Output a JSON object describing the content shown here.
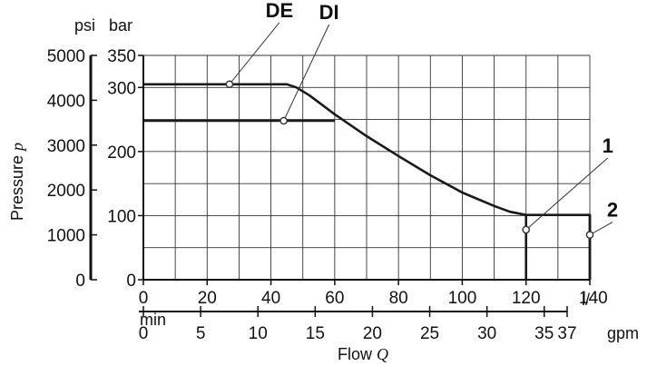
{
  "chart_data": {
    "type": "line",
    "title": "",
    "xlabel": "Flow",
    "xlabel_symbol": "Q",
    "ylabel": "Pressure",
    "ylabel_symbol": "p",
    "x_axes": {
      "primary": {
        "unit": "l/min",
        "unit_line1": "l/",
        "unit_line2": "min",
        "ticks": [
          0,
          20,
          40,
          60,
          80,
          100,
          120,
          140
        ],
        "range": [
          0,
          140
        ]
      },
      "secondary": {
        "unit": "gpm",
        "ticks": [
          0,
          5,
          10,
          15,
          20,
          25,
          30,
          35,
          37
        ],
        "range": [
          0,
          37
        ]
      }
    },
    "y_axes": {
      "bar": {
        "unit": "bar",
        "ticks": [
          0,
          100,
          200,
          300,
          350
        ],
        "range": [
          0,
          350
        ]
      },
      "psi": {
        "unit": "psi",
        "ticks": [
          0,
          1000,
          2000,
          3000,
          4000,
          5000
        ],
        "range": [
          0,
          5000
        ]
      }
    },
    "grid": true,
    "series": [
      {
        "label": "DE",
        "x": [
          0,
          45,
          48,
          52,
          56,
          60,
          70,
          80,
          90,
          100,
          110,
          115,
          120,
          140,
          140
        ],
        "y": [
          305,
          305,
          300,
          288,
          273,
          258,
          224,
          193,
          163,
          136,
          115,
          106,
          101,
          101,
          0
        ]
      },
      {
        "label": "DI",
        "x": [
          0,
          60
        ],
        "y": [
          248,
          248
        ]
      }
    ],
    "vertical_lines": [
      {
        "x": 120,
        "y_from": 0,
        "y_to": 101
      },
      {
        "x": 140,
        "y_from": 0,
        "y_to": 101
      }
    ],
    "annotations": [
      {
        "label": "DE",
        "x": 27,
        "y": 305
      },
      {
        "label": "DI",
        "x": 44,
        "y": 248
      },
      {
        "label": "1",
        "x": 120,
        "y": 78
      },
      {
        "label": "2",
        "x": 140,
        "y": 70
      }
    ]
  }
}
